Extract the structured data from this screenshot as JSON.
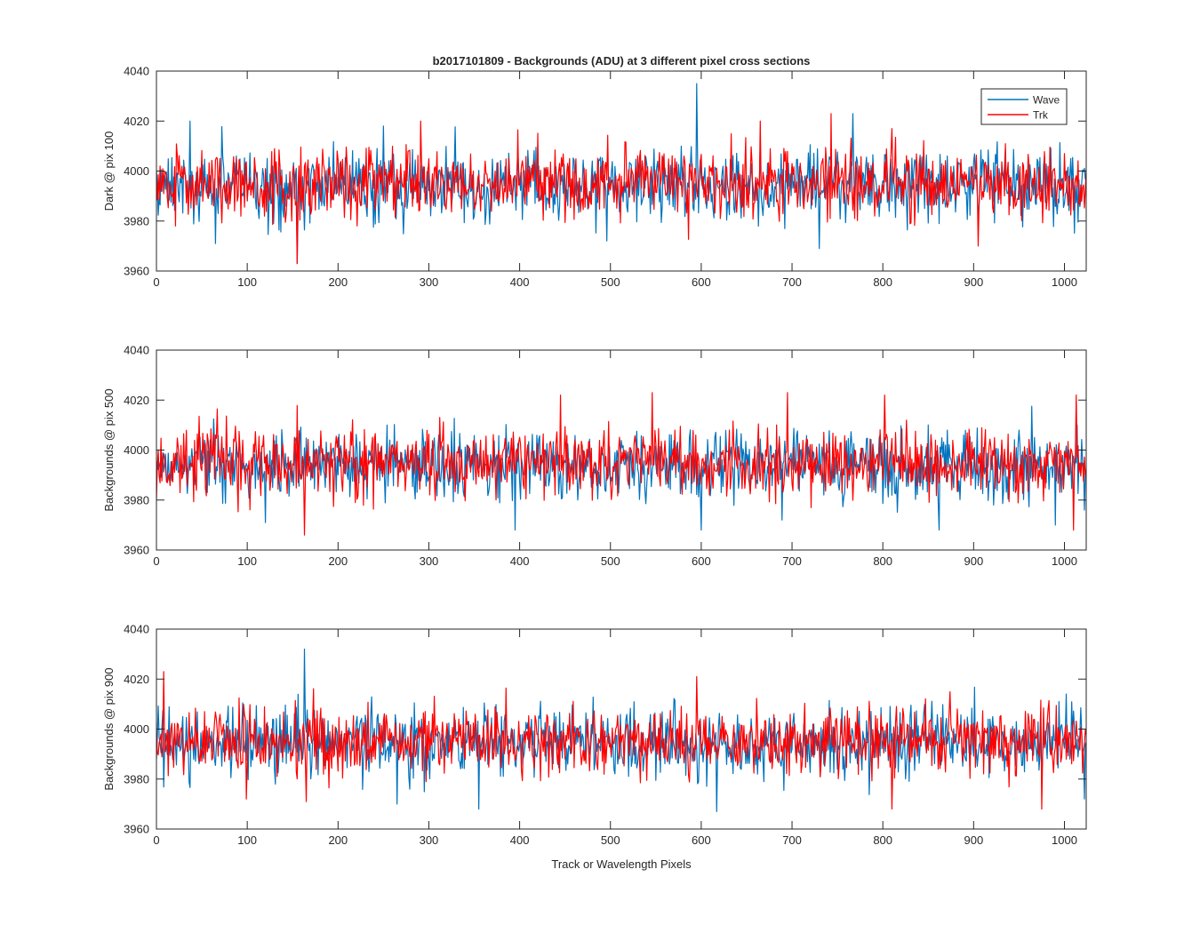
{
  "figure_title": "b2017101809 - Backgrounds (ADU) at 3 different pixel cross sections",
  "x_axis_label": "Track or Wavelength Pixels",
  "legend": {
    "entries": [
      "Wave",
      "Trk"
    ],
    "placement": "top-right (first subplot only)"
  },
  "colors": {
    "Wave": "#0072BD",
    "Trk": "#FF0000",
    "axes": "#262626",
    "background": "#FFFFFF"
  },
  "chart_data": [
    {
      "type": "line",
      "title": "b2017101809 - Backgrounds (ADU) at 3 different pixel cross sections",
      "ylabel": "Dark @ pix 100",
      "xlabel": "",
      "xlim": [
        0,
        1024
      ],
      "ylim": [
        3960,
        4040
      ],
      "xticks": [
        0,
        100,
        200,
        300,
        400,
        500,
        600,
        700,
        800,
        900,
        1000
      ],
      "yticks": [
        3960,
        3980,
        4000,
        4020,
        4040
      ],
      "grid": false,
      "legend": "top-right",
      "series": [
        {
          "name": "Wave",
          "mean": 3994,
          "noise_sd": 7,
          "spikes": [
            [
              37,
              4020
            ],
            [
              65,
              3971
            ],
            [
              155,
              3963
            ],
            [
              595,
              4035
            ],
            [
              730,
              3969
            ],
            [
              767,
              4023
            ],
            [
              862,
              3979
            ]
          ]
        },
        {
          "name": "Trk",
          "mean": 3995,
          "noise_sd": 7,
          "spikes": [
            [
              155,
              3963
            ],
            [
              291,
              4020
            ],
            [
              665,
              4020
            ],
            [
              743,
              4023
            ],
            [
              810,
              4017
            ],
            [
              905,
              3970
            ]
          ]
        }
      ]
    },
    {
      "type": "line",
      "ylabel": "Backgrounds @ pix 500",
      "xlabel": "",
      "xlim": [
        0,
        1024
      ],
      "ylim": [
        3960,
        4040
      ],
      "xticks": [
        0,
        100,
        200,
        300,
        400,
        500,
        600,
        700,
        800,
        900,
        1000
      ],
      "yticks": [
        3960,
        3980,
        4000,
        4020,
        4040
      ],
      "grid": false,
      "series": [
        {
          "name": "Wave",
          "mean": 3994,
          "noise_sd": 7,
          "spikes": [
            [
              120,
              3971
            ],
            [
              395,
              3968
            ],
            [
              600,
              3968
            ],
            [
              862,
              3968
            ],
            [
              990,
              3970
            ],
            [
              1022,
              3976
            ]
          ]
        },
        {
          "name": "Trk",
          "mean": 3995,
          "noise_sd": 7,
          "spikes": [
            [
              163,
              3966
            ],
            [
              445,
              4022
            ],
            [
              546,
              4023
            ],
            [
              695,
              4023
            ],
            [
              802,
              4022
            ],
            [
              1013,
              4022
            ],
            [
              1010,
              3968
            ]
          ]
        }
      ]
    },
    {
      "type": "line",
      "ylabel": "Backgrounds @ pix 900",
      "xlabel": "Track or Wavelength Pixels",
      "xlim": [
        0,
        1024
      ],
      "ylim": [
        3960,
        4040
      ],
      "xticks": [
        0,
        100,
        200,
        300,
        400,
        500,
        600,
        700,
        800,
        900,
        1000
      ],
      "yticks": [
        3960,
        3980,
        4000,
        4020,
        4040
      ],
      "grid": false,
      "series": [
        {
          "name": "Wave",
          "mean": 3994,
          "noise_sd": 7,
          "spikes": [
            [
              163,
              4032
            ],
            [
              265,
              3970
            ],
            [
              355,
              3968
            ],
            [
              617,
              3967
            ],
            [
              1022,
              3972
            ]
          ]
        },
        {
          "name": "Trk",
          "mean": 3995,
          "noise_sd": 7,
          "spikes": [
            [
              8,
              4023
            ],
            [
              165,
              3971
            ],
            [
              595,
              4021
            ],
            [
              810,
              3968
            ],
            [
              975,
              3968
            ]
          ]
        }
      ]
    }
  ]
}
